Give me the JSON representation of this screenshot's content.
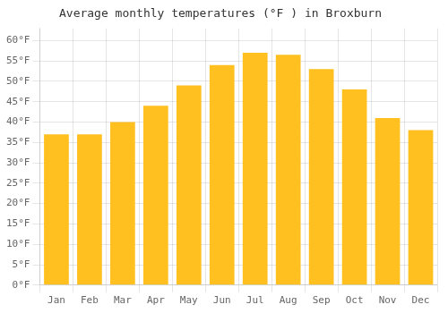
{
  "chart_data": {
    "type": "bar",
    "title": "Average monthly temperatures (°F ) in Broxburn",
    "categories": [
      "Jan",
      "Feb",
      "Mar",
      "Apr",
      "May",
      "Jun",
      "Jul",
      "Aug",
      "Sep",
      "Oct",
      "Nov",
      "Dec"
    ],
    "values": [
      37.0,
      37.0,
      40.0,
      44.0,
      49.0,
      54.0,
      57.0,
      56.5,
      53.0,
      48.0,
      41.0,
      38.0
    ],
    "color": "#FFC020",
    "ylim": [
      0,
      63
    ],
    "yticks": [
      {
        "value": 0,
        "label": "0°F"
      },
      {
        "value": 5,
        "label": "5°F"
      },
      {
        "value": 10,
        "label": "10°F"
      },
      {
        "value": 15,
        "label": "15°F"
      },
      {
        "value": 20,
        "label": "20°F"
      },
      {
        "value": 25,
        "label": "25°F"
      },
      {
        "value": 30,
        "label": "30°F"
      },
      {
        "value": 35,
        "label": "35°F"
      },
      {
        "value": 40,
        "label": "40°F"
      },
      {
        "value": 45,
        "label": "45°F"
      },
      {
        "value": 50,
        "label": "50°F"
      },
      {
        "value": 55,
        "label": "55°F"
      },
      {
        "value": 60,
        "label": "60°F"
      }
    ],
    "grid": true
  }
}
